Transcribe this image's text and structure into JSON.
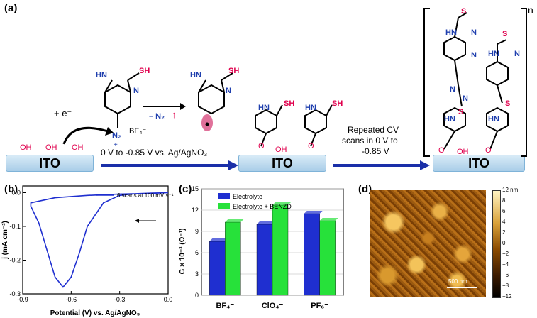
{
  "panel_a": {
    "label": "(a)",
    "ito": "ITO",
    "oh": "OH",
    "sh": "SH",
    "hn": "HN",
    "n": "N",
    "s": "S",
    "o": "O",
    "electron": "+ e⁻",
    "n2_label": "N₂",
    "plus": "+",
    "bf4": "BF₄⁻",
    "minus_n2": "– N₂",
    "step1": "0 V to -0.85 V vs. Ag/AgNO₃",
    "step2_line1": "Repeated CV",
    "step2_line2": "scans in 0 V to",
    "step2_line3": "-0.85 V",
    "polymer_n": "n"
  },
  "panel_b": {
    "label": "(b)",
    "legend": "6 scans at 100 mV s⁻¹",
    "ylabel": "j (mA cm⁻²)",
    "xlabel": "Potential (V) vs. Ag/AgNO₃",
    "xticks": [
      "-0.9",
      "-0.6",
      "-0.3",
      "0.0"
    ],
    "yticks": [
      "0.0",
      "-0.1",
      "-0.2",
      "-0.3"
    ]
  },
  "panel_c": {
    "label": "(c)",
    "ylabel": "G × 10⁻³ (Ω⁻¹)",
    "legend": [
      "Electrolyte",
      "Electrolyte + BENZD"
    ],
    "categories": [
      "BF₄⁻",
      "ClO₄⁻",
      "PF₆⁻"
    ],
    "yticks": [
      "0",
      "3",
      "6",
      "9",
      "12",
      "15"
    ]
  },
  "panel_d": {
    "label": "(d)",
    "scale_bar": "500 nm",
    "colorbar_ticks": [
      "12 nm",
      "8",
      "6",
      "4",
      "2",
      "0",
      "−2",
      "−4",
      "−6",
      "−8",
      "−12"
    ]
  },
  "colors": {
    "blue": "#1f2fd0",
    "green": "#27e13a",
    "ito_edge": "#7fb3d8",
    "pink": "#e0004d"
  },
  "chart_data": [
    {
      "type": "line",
      "title": "",
      "xlabel": "Potential (V) vs. Ag/AgNO₃",
      "ylabel": "j (mA cm⁻²)",
      "xlim": [
        -0.9,
        0.0
      ],
      "ylim": [
        -0.3,
        0.02
      ],
      "series": [
        {
          "name": "6 scans at 100 mV s⁻¹",
          "x": [
            0.0,
            -0.1,
            -0.2,
            -0.3,
            -0.4,
            -0.5,
            -0.55,
            -0.6,
            -0.65,
            -0.7,
            -0.75,
            -0.8,
            -0.85,
            -0.85,
            -0.7,
            -0.5,
            -0.3,
            -0.1,
            0.0
          ],
          "y": [
            0.0,
            -0.001,
            -0.003,
            -0.008,
            -0.03,
            -0.1,
            -0.18,
            -0.25,
            -0.28,
            -0.25,
            -0.17,
            -0.09,
            -0.04,
            -0.03,
            -0.015,
            -0.008,
            -0.004,
            -0.002,
            0.0
          ]
        }
      ]
    },
    {
      "type": "bar",
      "title": "",
      "xlabel": "",
      "ylabel": "G × 10⁻³ (Ω⁻¹)",
      "ylim": [
        0,
        15
      ],
      "categories": [
        "BF₄⁻",
        "ClO₄⁻",
        "PF₆⁻"
      ],
      "series": [
        {
          "name": "Electrolyte",
          "values": [
            7.6,
            10.0,
            11.5
          ]
        },
        {
          "name": "Electrolyte + BENZD",
          "values": [
            10.3,
            12.7,
            10.5
          ]
        }
      ]
    }
  ]
}
